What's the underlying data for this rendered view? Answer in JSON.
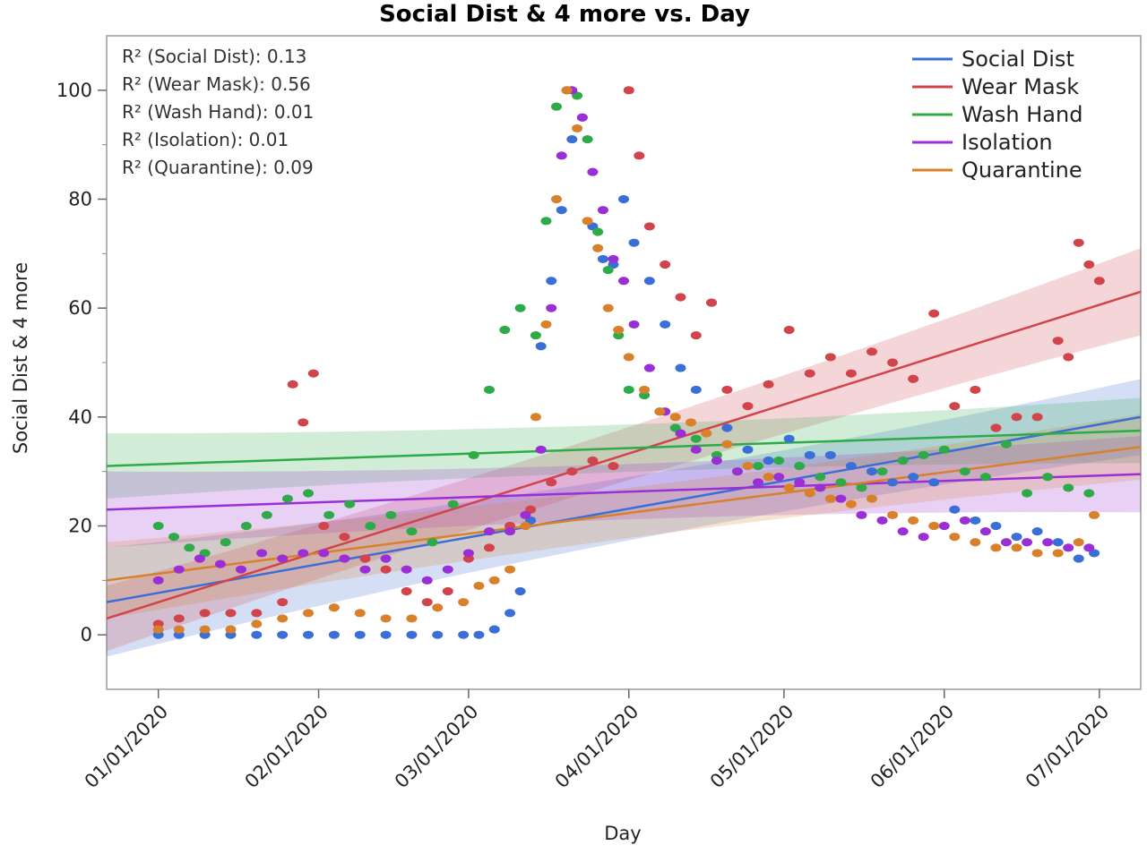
{
  "chart_data": {
    "type": "scatter",
    "title": "Social Dist & 4 more vs. Day",
    "xlabel": "Day",
    "ylabel": "Social Dist & 4 more",
    "x_range": [
      "2019-12-22",
      "2020-07-09"
    ],
    "ylim": [
      -10,
      110
    ],
    "x_ticks": [
      "01/01/2020",
      "02/01/2020",
      "03/01/2020",
      "04/01/2020",
      "05/01/2020",
      "06/01/2020",
      "07/01/2020"
    ],
    "x_tick_dates": [
      "2020-01-01",
      "2020-02-01",
      "2020-03-01",
      "2020-04-01",
      "2020-05-01",
      "2020-06-01",
      "2020-07-01"
    ],
    "y_ticks": [
      0,
      20,
      40,
      60,
      80,
      100
    ],
    "grid": false,
    "legend_position": "top-right",
    "annotations": [
      "R² (Social Dist): 0.13",
      "R² (Wear Mask): 0.56",
      "R² (Wash Hand): 0.01",
      "R² (Isolation): 0.01",
      "R² (Quarantine): 0.09"
    ],
    "series": [
      {
        "name": "Social Dist",
        "color": "#3a6fd8",
        "fit": {
          "start": [
            "2019-12-22",
            6
          ],
          "end": [
            "2020-07-09",
            40
          ]
        },
        "band": [
          10,
          7
        ],
        "x": [
          "2020-01-01",
          "2020-01-05",
          "2020-01-10",
          "2020-01-15",
          "2020-01-20",
          "2020-01-25",
          "2020-01-30",
          "2020-02-04",
          "2020-02-09",
          "2020-02-14",
          "2020-02-19",
          "2020-02-24",
          "2020-02-29",
          "2020-03-03",
          "2020-03-06",
          "2020-03-09",
          "2020-03-11",
          "2020-03-13",
          "2020-03-15",
          "2020-03-17",
          "2020-03-19",
          "2020-03-21",
          "2020-03-23",
          "2020-03-25",
          "2020-03-27",
          "2020-03-29",
          "2020-03-31",
          "2020-04-02",
          "2020-04-05",
          "2020-04-08",
          "2020-04-11",
          "2020-04-14",
          "2020-04-17",
          "2020-04-20",
          "2020-04-24",
          "2020-04-28",
          "2020-05-02",
          "2020-05-06",
          "2020-05-10",
          "2020-05-14",
          "2020-05-18",
          "2020-05-22",
          "2020-05-26",
          "2020-05-30",
          "2020-06-03",
          "2020-06-07",
          "2020-06-11",
          "2020-06-15",
          "2020-06-19",
          "2020-06-23",
          "2020-06-27",
          "2020-06-30"
        ],
        "y": [
          0,
          0,
          0,
          0,
          0,
          0,
          0,
          0,
          0,
          0,
          0,
          0,
          0,
          0,
          1,
          4,
          8,
          21,
          53,
          65,
          78,
          91,
          95,
          75,
          69,
          68,
          80,
          72,
          65,
          57,
          49,
          45,
          61,
          38,
          34,
          32,
          36,
          33,
          33,
          31,
          30,
          28,
          29,
          28,
          23,
          21,
          20,
          18,
          19,
          17,
          14,
          15
        ]
      },
      {
        "name": "Wear Mask",
        "color": "#d2444c",
        "fit": {
          "start": [
            "2019-12-22",
            3
          ],
          "end": [
            "2020-07-09",
            63
          ]
        },
        "band": [
          6,
          8
        ],
        "x": [
          "2020-01-01",
          "2020-01-05",
          "2020-01-10",
          "2020-01-15",
          "2020-01-20",
          "2020-01-25",
          "2020-01-27",
          "2020-01-29",
          "2020-01-31",
          "2020-02-02",
          "2020-02-06",
          "2020-02-10",
          "2020-02-14",
          "2020-02-18",
          "2020-02-22",
          "2020-02-26",
          "2020-03-01",
          "2020-03-05",
          "2020-03-09",
          "2020-03-13",
          "2020-03-17",
          "2020-03-21",
          "2020-03-25",
          "2020-03-29",
          "2020-04-01",
          "2020-04-03",
          "2020-04-05",
          "2020-04-08",
          "2020-04-11",
          "2020-04-14",
          "2020-04-17",
          "2020-04-20",
          "2020-04-24",
          "2020-04-28",
          "2020-05-02",
          "2020-05-06",
          "2020-05-10",
          "2020-05-14",
          "2020-05-18",
          "2020-05-22",
          "2020-05-26",
          "2020-05-30",
          "2020-06-03",
          "2020-06-07",
          "2020-06-11",
          "2020-06-15",
          "2020-06-19",
          "2020-06-23",
          "2020-06-25",
          "2020-06-27",
          "2020-06-29",
          "2020-07-01"
        ],
        "y": [
          2,
          3,
          4,
          4,
          4,
          6,
          46,
          39,
          48,
          20,
          18,
          14,
          12,
          8,
          6,
          8,
          14,
          16,
          20,
          23,
          28,
          30,
          32,
          31,
          100,
          88,
          75,
          68,
          62,
          55,
          61,
          45,
          42,
          46,
          56,
          48,
          51,
          48,
          52,
          50,
          47,
          59,
          42,
          45,
          38,
          40,
          40,
          54,
          51,
          72,
          68,
          65
        ]
      },
      {
        "name": "Wash Hand",
        "color": "#2eaa48",
        "fit": {
          "start": [
            "2019-12-22",
            31
          ],
          "end": [
            "2020-07-09",
            37.5
          ]
        },
        "band": [
          6,
          6
        ],
        "x": [
          "2020-01-01",
          "2020-01-04",
          "2020-01-07",
          "2020-01-10",
          "2020-01-14",
          "2020-01-18",
          "2020-01-22",
          "2020-01-26",
          "2020-01-30",
          "2020-02-03",
          "2020-02-07",
          "2020-02-11",
          "2020-02-15",
          "2020-02-19",
          "2020-02-23",
          "2020-02-27",
          "2020-03-02",
          "2020-03-05",
          "2020-03-08",
          "2020-03-11",
          "2020-03-14",
          "2020-03-16",
          "2020-03-18",
          "2020-03-20",
          "2020-03-22",
          "2020-03-24",
          "2020-03-26",
          "2020-03-28",
          "2020-03-30",
          "2020-04-01",
          "2020-04-04",
          "2020-04-07",
          "2020-04-10",
          "2020-04-14",
          "2020-04-18",
          "2020-04-22",
          "2020-04-26",
          "2020-04-30",
          "2020-05-04",
          "2020-05-08",
          "2020-05-12",
          "2020-05-16",
          "2020-05-20",
          "2020-05-24",
          "2020-05-28",
          "2020-06-01",
          "2020-06-05",
          "2020-06-09",
          "2020-06-13",
          "2020-06-17",
          "2020-06-21",
          "2020-06-25",
          "2020-06-29"
        ],
        "y": [
          20,
          18,
          16,
          15,
          17,
          20,
          22,
          25,
          26,
          22,
          24,
          20,
          22,
          19,
          17,
          24,
          33,
          45,
          56,
          60,
          55,
          76,
          97,
          100,
          99,
          91,
          74,
          67,
          55,
          45,
          44,
          41,
          38,
          36,
          33,
          30,
          31,
          32,
          31,
          29,
          28,
          27,
          30,
          32,
          33,
          34,
          30,
          29,
          35,
          26,
          29,
          27,
          26
        ]
      },
      {
        "name": "Isolation",
        "color": "#9b2fd6",
        "fit": {
          "start": [
            "2019-12-22",
            23
          ],
          "end": [
            "2020-07-09",
            29.5
          ]
        },
        "band": [
          7,
          7
        ],
        "x": [
          "2020-01-01",
          "2020-01-05",
          "2020-01-09",
          "2020-01-13",
          "2020-01-17",
          "2020-01-21",
          "2020-01-25",
          "2020-01-29",
          "2020-02-02",
          "2020-02-06",
          "2020-02-10",
          "2020-02-14",
          "2020-02-18",
          "2020-02-22",
          "2020-02-26",
          "2020-03-01",
          "2020-03-05",
          "2020-03-09",
          "2020-03-12",
          "2020-03-15",
          "2020-03-17",
          "2020-03-19",
          "2020-03-21",
          "2020-03-23",
          "2020-03-25",
          "2020-03-27",
          "2020-03-29",
          "2020-03-31",
          "2020-04-02",
          "2020-04-05",
          "2020-04-08",
          "2020-04-11",
          "2020-04-14",
          "2020-04-18",
          "2020-04-22",
          "2020-04-26",
          "2020-04-30",
          "2020-05-04",
          "2020-05-08",
          "2020-05-12",
          "2020-05-16",
          "2020-05-20",
          "2020-05-24",
          "2020-05-28",
          "2020-06-01",
          "2020-06-05",
          "2020-06-09",
          "2020-06-13",
          "2020-06-17",
          "2020-06-21",
          "2020-06-25",
          "2020-06-29"
        ],
        "y": [
          10,
          12,
          14,
          13,
          12,
          15,
          14,
          15,
          15,
          14,
          12,
          14,
          12,
          10,
          12,
          15,
          19,
          19,
          22,
          34,
          60,
          88,
          100,
          95,
          85,
          78,
          69,
          65,
          57,
          49,
          41,
          37,
          34,
          32,
          30,
          28,
          29,
          28,
          27,
          25,
          22,
          21,
          19,
          18,
          20,
          21,
          19,
          17,
          17,
          17,
          16,
          16
        ]
      },
      {
        "name": "Quarantine",
        "color": "#d8802a",
        "fit": {
          "start": [
            "2019-12-22",
            10
          ],
          "end": [
            "2020-07-09",
            34.5
          ]
        },
        "band": [
          7,
          6
        ],
        "x": [
          "2020-01-01",
          "2020-01-05",
          "2020-01-10",
          "2020-01-15",
          "2020-01-20",
          "2020-01-25",
          "2020-01-30",
          "2020-02-04",
          "2020-02-09",
          "2020-02-14",
          "2020-02-19",
          "2020-02-24",
          "2020-02-29",
          "2020-03-03",
          "2020-03-06",
          "2020-03-09",
          "2020-03-12",
          "2020-03-14",
          "2020-03-16",
          "2020-03-18",
          "2020-03-20",
          "2020-03-22",
          "2020-03-24",
          "2020-03-26",
          "2020-03-28",
          "2020-03-30",
          "2020-04-01",
          "2020-04-04",
          "2020-04-07",
          "2020-04-10",
          "2020-04-13",
          "2020-04-16",
          "2020-04-20",
          "2020-04-24",
          "2020-04-28",
          "2020-05-02",
          "2020-05-06",
          "2020-05-10",
          "2020-05-14",
          "2020-05-18",
          "2020-05-22",
          "2020-05-26",
          "2020-05-30",
          "2020-06-03",
          "2020-06-07",
          "2020-06-11",
          "2020-06-15",
          "2020-06-19",
          "2020-06-23",
          "2020-06-27",
          "2020-06-30"
        ],
        "y": [
          1,
          1,
          1,
          1,
          2,
          3,
          4,
          5,
          4,
          3,
          3,
          5,
          6,
          9,
          10,
          12,
          20,
          40,
          57,
          80,
          100,
          93,
          76,
          71,
          60,
          56,
          51,
          45,
          41,
          40,
          39,
          37,
          35,
          31,
          29,
          27,
          26,
          25,
          24,
          25,
          22,
          21,
          20,
          18,
          17,
          16,
          16,
          15,
          15,
          17,
          22
        ]
      }
    ]
  }
}
